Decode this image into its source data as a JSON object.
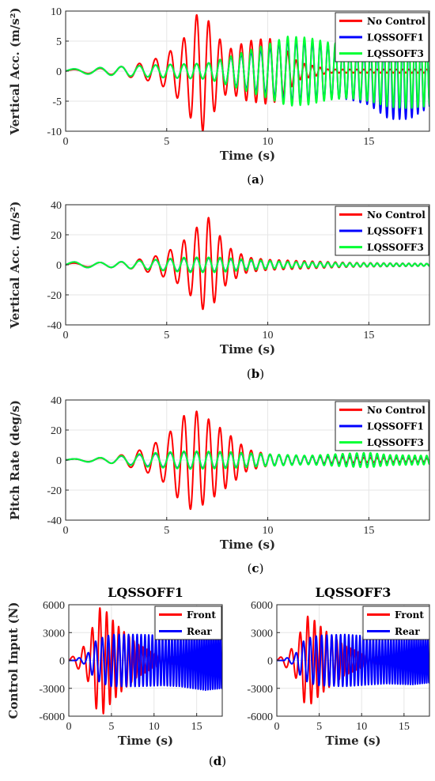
{
  "colors": {
    "red": "#ff0000",
    "blue": "#0000ff",
    "green": "#00ff33",
    "grid": "#e6e6e6",
    "axis": "#262626"
  },
  "chart_data": [
    {
      "id": "a",
      "type": "line",
      "caption_letter": "a",
      "xlabel": "Time (s)",
      "ylabel": "Vertical Acc. (m/s²)",
      "xlim": [
        0,
        18
      ],
      "ylim": [
        -10,
        10
      ],
      "xticks": [
        0,
        5,
        10,
        15
      ],
      "yticks": [
        -10,
        -5,
        0,
        5,
        10
      ],
      "legend": [
        "No Control",
        "LQSSOFF1",
        "LQSSOFF3"
      ],
      "legend_position": "top-right",
      "grid": true,
      "series": [
        {
          "name": "No Control",
          "color": "red",
          "freq_start": 0.6,
          "freq_rate": 0.16,
          "envelope": [
            [
              0,
              0.2
            ],
            [
              2.5,
              0.6
            ],
            [
              4,
              1.5
            ],
            [
              5,
              2.8
            ],
            [
              6,
              6
            ],
            [
              6.3,
              9
            ],
            [
              6.8,
              10
            ],
            [
              7.3,
              7
            ],
            [
              8,
              3.5
            ],
            [
              9,
              5
            ],
            [
              10,
              5.5
            ],
            [
              10.5,
              5
            ],
            [
              11.5,
              1.5
            ],
            [
              13,
              0.3
            ],
            [
              18,
              0.3
            ]
          ]
        },
        {
          "name": "LQSSOFF1",
          "color": "blue",
          "freq_start": 0.6,
          "freq_rate": 0.16,
          "envelope": [
            [
              0,
              0.3
            ],
            [
              3,
              0.8
            ],
            [
              5,
              1.1
            ],
            [
              7,
              1.3
            ],
            [
              8,
              2.2
            ],
            [
              10,
              3.8
            ],
            [
              11,
              5.2
            ],
            [
              12,
              5
            ],
            [
              13,
              4.5
            ],
            [
              14,
              4.3
            ],
            [
              15,
              4.8
            ],
            [
              16,
              6.5
            ],
            [
              17,
              6.8
            ],
            [
              18,
              5.5
            ]
          ],
          "offset_env": [
            [
              0,
              0
            ],
            [
              13,
              0
            ],
            [
              15,
              -0.8
            ],
            [
              16,
              -1.5
            ],
            [
              17,
              -1.2
            ],
            [
              18,
              -0.5
            ]
          ]
        },
        {
          "name": "LQSSOFF3",
          "color": "green",
          "freq_start": 0.6,
          "freq_rate": 0.16,
          "envelope": [
            [
              0,
              0.3
            ],
            [
              3,
              0.8
            ],
            [
              5,
              1.1
            ],
            [
              7,
              1.3
            ],
            [
              8,
              2.3
            ],
            [
              10,
              4.5
            ],
            [
              11,
              5.8
            ],
            [
              12,
              5.6
            ],
            [
              13,
              4.8
            ],
            [
              14,
              4.5
            ],
            [
              15,
              5
            ],
            [
              16,
              6
            ],
            [
              17,
              6.2
            ],
            [
              18,
              5.8
            ]
          ]
        }
      ]
    },
    {
      "id": "b",
      "type": "line",
      "caption_letter": "b",
      "xlabel": "Time (s)",
      "ylabel": "Vertical Acc. (m/s²)",
      "xlim": [
        0,
        18
      ],
      "ylim": [
        -40,
        40
      ],
      "xticks": [
        0,
        5,
        10,
        15
      ],
      "yticks": [
        -40,
        -20,
        0,
        20,
        40
      ],
      "legend": [
        "No Control",
        "LQSSOFF1",
        "LQSSOFF3"
      ],
      "legend_position": "top-right",
      "grid": true,
      "series": [
        {
          "name": "No Control",
          "color": "red",
          "freq_start": 0.6,
          "freq_rate": 0.16,
          "envelope": [
            [
              0,
              1
            ],
            [
              3,
              2
            ],
            [
              4.5,
              6
            ],
            [
              5.5,
              12
            ],
            [
              6.3,
              22
            ],
            [
              7,
              33
            ],
            [
              7.5,
              22
            ],
            [
              8,
              12
            ],
            [
              9,
              5
            ],
            [
              10,
              3.5
            ],
            [
              12,
              2.5
            ],
            [
              14,
              1.5
            ],
            [
              18,
              0.8
            ]
          ]
        },
        {
          "name": "LQSSOFF1",
          "color": "blue",
          "freq_start": 0.6,
          "freq_rate": 0.16,
          "envelope": [
            [
              0,
              1.5
            ],
            [
              0.5,
              2
            ],
            [
              2,
              1.5
            ],
            [
              4,
              3
            ],
            [
              6,
              4.5
            ],
            [
              7.5,
              4.5
            ],
            [
              9,
              3
            ],
            [
              11,
              2
            ],
            [
              14,
              1.2
            ],
            [
              18,
              0.8
            ]
          ]
        },
        {
          "name": "LQSSOFF3",
          "color": "green",
          "freq_start": 0.6,
          "freq_rate": 0.16,
          "envelope": [
            [
              0,
              1.5
            ],
            [
              0.5,
              2
            ],
            [
              2,
              1.5
            ],
            [
              4,
              3
            ],
            [
              6,
              5
            ],
            [
              7.5,
              5
            ],
            [
              9,
              3.5
            ],
            [
              11,
              2
            ],
            [
              14,
              1.2
            ],
            [
              18,
              0.8
            ]
          ]
        }
      ]
    },
    {
      "id": "c",
      "type": "line",
      "caption_letter": "c",
      "xlabel": "Time (s)",
      "ylabel": "Pitch Rate (deg/s)",
      "xlim": [
        0,
        18
      ],
      "ylim": [
        -40,
        40
      ],
      "xticks": [
        0,
        5,
        10,
        15
      ],
      "yticks": [
        -40,
        -20,
        0,
        20,
        40
      ],
      "legend": [
        "No Control",
        "LQSSOFF1",
        "LQSSOFF3"
      ],
      "legend_position": "top-right",
      "grid": true,
      "series": [
        {
          "name": "No Control",
          "color": "red",
          "freq_start": 0.6,
          "freq_rate": 0.16,
          "envelope": [
            [
              0,
              0.5
            ],
            [
              2,
              1.5
            ],
            [
              3,
              4
            ],
            [
              4,
              8
            ],
            [
              5,
              16
            ],
            [
              5.7,
              28
            ],
            [
              6.3,
              34
            ],
            [
              7,
              28
            ],
            [
              8,
              18
            ],
            [
              9,
              7
            ],
            [
              10,
              4
            ],
            [
              11,
              3
            ],
            [
              13,
              2
            ],
            [
              15,
              1.5
            ],
            [
              18,
              1
            ]
          ]
        },
        {
          "name": "LQSSOFF1",
          "color": "blue",
          "freq_start": 0.6,
          "freq_rate": 0.16,
          "envelope": [
            [
              0,
              0.5
            ],
            [
              2,
              1.8
            ],
            [
              4,
              4
            ],
            [
              6,
              5.5
            ],
            [
              8,
              5
            ],
            [
              10,
              3.5
            ],
            [
              12,
              2.5
            ],
            [
              14,
              3.5
            ],
            [
              15,
              4
            ],
            [
              16,
              3
            ],
            [
              18,
              2.5
            ]
          ]
        },
        {
          "name": "LQSSOFF3",
          "color": "green",
          "freq_start": 0.6,
          "freq_rate": 0.16,
          "envelope": [
            [
              0,
              0.5
            ],
            [
              2,
              1.8
            ],
            [
              4,
              4.5
            ],
            [
              6,
              6
            ],
            [
              8,
              5.5
            ],
            [
              10,
              4
            ],
            [
              12,
              3
            ],
            [
              14,
              4.5
            ],
            [
              15,
              5
            ],
            [
              16,
              3.5
            ],
            [
              18,
              3
            ]
          ]
        }
      ]
    },
    {
      "id": "d1",
      "type": "line",
      "title": "LQSSOFF1",
      "caption_letter": "d",
      "xlabel": "Time (s)",
      "ylabel": "Control Input (N)",
      "xlim": [
        0,
        18
      ],
      "ylim": [
        -6000,
        6000
      ],
      "xticks": [
        0,
        5,
        10,
        15
      ],
      "yticks": [
        -6000,
        -3000,
        0,
        3000,
        6000
      ],
      "legend": [
        "Front",
        "Rear"
      ],
      "legend_position": "top-right",
      "grid": true,
      "series": [
        {
          "name": "Front",
          "color": "red",
          "freq_start": 0.6,
          "freq_rate": 0.16,
          "envelope": [
            [
              0,
              100
            ],
            [
              1.5,
              1200
            ],
            [
              2.5,
              2600
            ],
            [
              3.3,
              5500
            ],
            [
              4,
              5800
            ],
            [
              5,
              4500
            ],
            [
              6,
              3500
            ],
            [
              8,
              1800
            ],
            [
              10,
              800
            ],
            [
              12,
              400
            ],
            [
              18,
              200
            ]
          ]
        },
        {
          "name": "Rear",
          "color": "blue",
          "freq_start": 0.8,
          "freq_rate": 0.18,
          "phase_delay": 0.9,
          "envelope": [
            [
              0,
              100
            ],
            [
              2,
              400
            ],
            [
              3,
              2000
            ],
            [
              4,
              2500
            ],
            [
              5,
              2800
            ],
            [
              8,
              2800
            ],
            [
              11,
              2700
            ],
            [
              13,
              2800
            ],
            [
              16,
              3200
            ],
            [
              18,
              3000
            ]
          ]
        }
      ]
    },
    {
      "id": "d2",
      "type": "line",
      "title": "LQSSOFF3",
      "xlabel": "Time (s)",
      "ylabel": "",
      "xlim": [
        0,
        18
      ],
      "ylim": [
        -6000,
        6000
      ],
      "xticks": [
        0,
        5,
        10,
        15
      ],
      "yticks": [
        -6000,
        -3000,
        0,
        3000,
        6000
      ],
      "legend": [
        "Front",
        "Rear"
      ],
      "legend_position": "top-right",
      "grid": true,
      "series": [
        {
          "name": "Front",
          "color": "red",
          "freq_start": 0.6,
          "freq_rate": 0.16,
          "envelope": [
            [
              0,
              100
            ],
            [
              1.5,
              1000
            ],
            [
              2.5,
              2200
            ],
            [
              3.3,
              4800
            ],
            [
              4,
              4700
            ],
            [
              5,
              3800
            ],
            [
              6,
              3000
            ],
            [
              8,
              1600
            ],
            [
              10,
              800
            ],
            [
              12,
              400
            ],
            [
              18,
              200
            ]
          ]
        },
        {
          "name": "Rear",
          "color": "blue",
          "freq_start": 0.8,
          "freq_rate": 0.18,
          "phase_delay": 0.9,
          "envelope": [
            [
              0,
              100
            ],
            [
              2,
              400
            ],
            [
              3,
              2000
            ],
            [
              4,
              2500
            ],
            [
              5,
              2700
            ],
            [
              8,
              2800
            ],
            [
              11,
              2600
            ],
            [
              13,
              2500
            ],
            [
              16,
              2600
            ],
            [
              18,
              2400
            ]
          ]
        }
      ]
    }
  ]
}
